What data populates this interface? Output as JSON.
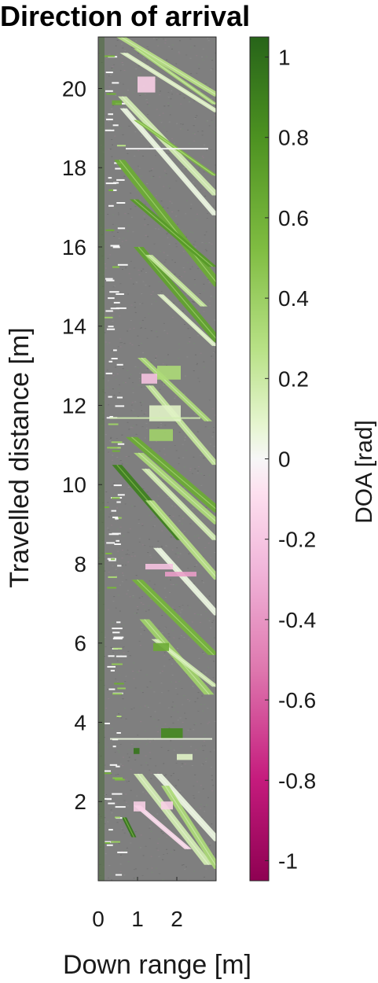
{
  "chart_data": {
    "type": "heatmap",
    "title": "Direction of arrival",
    "xlabel": "Down range [m]",
    "ylabel": "Travelled distance [m]",
    "xlim": [
      0,
      3.0
    ],
    "ylim": [
      0,
      21.3
    ],
    "xticks": [
      0,
      1,
      2
    ],
    "yticks": [
      2,
      4,
      6,
      8,
      10,
      12,
      14,
      16,
      18,
      20
    ],
    "colorbar": {
      "label": "DOA [rad]",
      "range": [
        -1.05,
        1.05
      ],
      "ticks": [
        1,
        0.8,
        0.6,
        0.4,
        0.2,
        0,
        -0.2,
        -0.4,
        -0.6,
        -0.8,
        -1
      ],
      "colors": {
        "negative": "#8e0152",
        "zero": "#f7f7f7",
        "positive": "#276419",
        "background": "#808080"
      }
    },
    "streaks": [
      {
        "x0": 0.45,
        "y0": 21.3,
        "x1": 2.95,
        "y1": 19.8,
        "w": 0.25,
        "doa": 0.25
      },
      {
        "x0": 0.55,
        "y0": 20.9,
        "x1": 2.95,
        "y1": 19.4,
        "w": 0.2,
        "doa": 0.1
      },
      {
        "x0": 0.9,
        "y0": 21.0,
        "x1": 2.9,
        "y1": 19.6,
        "w": 0.15,
        "doa": 0.3
      },
      {
        "x0": 0.5,
        "y0": 19.8,
        "x1": 2.9,
        "y1": 17.3,
        "w": 0.22,
        "doa": 0.15
      },
      {
        "x0": 0.55,
        "y0": 19.5,
        "x1": 2.9,
        "y1": 16.8,
        "w": 0.18,
        "doa": 0.05
      },
      {
        "x0": 0.9,
        "y0": 19.2,
        "x1": 2.9,
        "y1": 17.8,
        "w": 0.14,
        "doa": 0.5
      },
      {
        "x0": 0.4,
        "y0": 18.2,
        "x1": 2.95,
        "y1": 15.0,
        "w": 0.28,
        "doa": 0.6
      },
      {
        "x0": 0.8,
        "y0": 17.2,
        "x1": 2.8,
        "y1": 15.5,
        "w": 0.22,
        "doa": 0.7
      },
      {
        "x0": 0.9,
        "y0": 16.0,
        "x1": 2.95,
        "y1": 13.6,
        "w": 0.25,
        "doa": 0.65
      },
      {
        "x0": 1.2,
        "y0": 15.8,
        "x1": 2.6,
        "y1": 14.5,
        "w": 0.18,
        "doa": 0.2
      },
      {
        "x0": 1.5,
        "y0": 14.8,
        "x1": 2.9,
        "y1": 13.5,
        "w": 0.16,
        "doa": 0.1
      },
      {
        "x0": 1.0,
        "y0": 13.2,
        "x1": 2.7,
        "y1": 11.6,
        "w": 0.2,
        "doa": 0.3
      },
      {
        "x0": 1.2,
        "y0": 12.5,
        "x1": 2.9,
        "y1": 10.5,
        "w": 0.2,
        "doa": 0.2
      },
      {
        "x0": 0.35,
        "y0": 10.5,
        "x1": 2.0,
        "y1": 8.6,
        "w": 0.25,
        "doa": 0.85
      },
      {
        "x0": 0.7,
        "y0": 11.2,
        "x1": 2.95,
        "y1": 9.3,
        "w": 0.3,
        "doa": 0.6
      },
      {
        "x0": 0.9,
        "y0": 10.8,
        "x1": 2.95,
        "y1": 9.0,
        "w": 0.25,
        "doa": 0.3
      },
      {
        "x0": 1.1,
        "y0": 10.4,
        "x1": 2.9,
        "y1": 8.6,
        "w": 0.2,
        "doa": 0.15
      },
      {
        "x0": 1.2,
        "y0": 9.6,
        "x1": 2.95,
        "y1": 7.6,
        "w": 0.22,
        "doa": 0.25
      },
      {
        "x0": 1.4,
        "y0": 8.4,
        "x1": 2.95,
        "y1": 6.7,
        "w": 0.2,
        "doa": 0.05
      },
      {
        "x0": 0.85,
        "y0": 7.6,
        "x1": 2.8,
        "y1": 5.7,
        "w": 0.28,
        "doa": 0.55
      },
      {
        "x0": 1.05,
        "y0": 6.6,
        "x1": 2.7,
        "y1": 4.7,
        "w": 0.25,
        "doa": 0.35
      },
      {
        "x0": 1.35,
        "y0": 6.1,
        "x1": 2.9,
        "y1": 4.9,
        "w": 0.18,
        "doa": 0.15
      },
      {
        "x0": 0.6,
        "y0": 1.6,
        "x1": 0.85,
        "y1": 1.1,
        "w": 0.12,
        "doa": 0.9
      },
      {
        "x0": 0.9,
        "y0": 2.7,
        "x1": 2.7,
        "y1": 0.4,
        "w": 0.22,
        "doa": 0.15
      },
      {
        "x0": 1.4,
        "y0": 2.7,
        "x1": 2.95,
        "y1": 1.0,
        "w": 0.22,
        "doa": 0.05
      },
      {
        "x0": 1.6,
        "y0": 2.4,
        "x1": 2.95,
        "y1": 0.3,
        "w": 0.2,
        "doa": 0.3
      },
      {
        "x0": 0.9,
        "y0": 1.9,
        "x1": 2.2,
        "y1": 0.8,
        "w": 0.18,
        "doa": -0.1
      }
    ],
    "patches": [
      {
        "x": 0.35,
        "y": 19.7,
        "w": 0.25,
        "h": 0.12,
        "doa": 0.6
      },
      {
        "x": 1.0,
        "y": 20.3,
        "w": 0.45,
        "h": 0.4,
        "doa": -0.15
      },
      {
        "x": 0.7,
        "y": 18.5,
        "w": 2.1,
        "h": 0.04,
        "doa": 0.0
      },
      {
        "x": 1.5,
        "y": 13.0,
        "w": 0.6,
        "h": 0.35,
        "doa": 0.3
      },
      {
        "x": 1.3,
        "y": 12.0,
        "w": 0.8,
        "h": 0.4,
        "doa": 0.1
      },
      {
        "x": 1.1,
        "y": 12.8,
        "w": 0.4,
        "h": 0.25,
        "doa": -0.2
      },
      {
        "x": 0.3,
        "y": 11.7,
        "w": 2.3,
        "h": 0.04,
        "doa": 0.15
      },
      {
        "x": 1.3,
        "y": 11.4,
        "w": 0.6,
        "h": 0.3,
        "doa": 0.35
      },
      {
        "x": 1.2,
        "y": 8.0,
        "w": 0.7,
        "h": 0.14,
        "doa": -0.2
      },
      {
        "x": 1.7,
        "y": 7.8,
        "w": 0.8,
        "h": 0.12,
        "doa": -0.35
      },
      {
        "x": 1.4,
        "y": 6.0,
        "w": 0.4,
        "h": 0.2,
        "doa": 0.6
      },
      {
        "x": 1.6,
        "y": 3.85,
        "w": 0.55,
        "h": 0.25,
        "doa": 0.8
      },
      {
        "x": 2.0,
        "y": 3.2,
        "w": 0.4,
        "h": 0.15,
        "doa": 0.1
      },
      {
        "x": 0.9,
        "y": 3.35,
        "w": 0.15,
        "h": 0.15,
        "doa": 0.9
      },
      {
        "x": 0.9,
        "y": 2.0,
        "w": 0.3,
        "h": 0.25,
        "doa": -0.15
      },
      {
        "x": 1.6,
        "y": 2.0,
        "w": 0.3,
        "h": 0.2,
        "doa": -0.15
      },
      {
        "x": 0.3,
        "y": 3.6,
        "w": 2.6,
        "h": 0.03,
        "doa": 0.05
      }
    ]
  }
}
